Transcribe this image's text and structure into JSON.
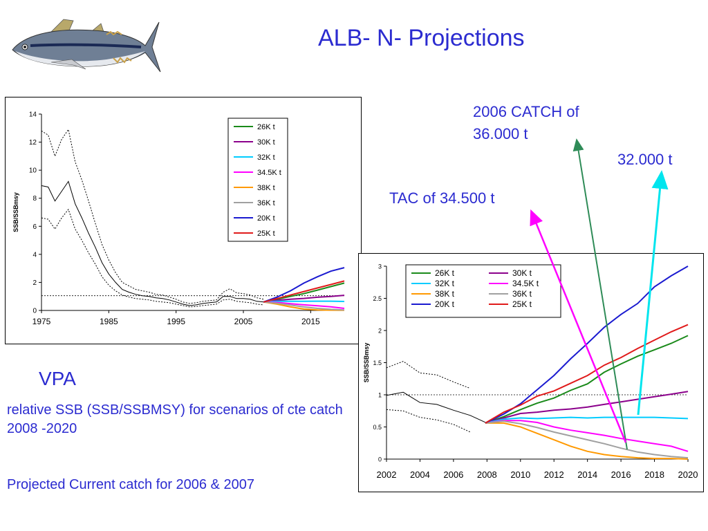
{
  "slide": {
    "title": "ALB- N- Projections",
    "vpa_label": "VPA",
    "description": "relative SSB (SSB/SSBMSY) for scenarios of cte catch 2008 -2020",
    "footnote": "Projected Current catch for 2006 & 2007",
    "annotations": {
      "catch_2006": "2006 CATCH of 36.000 t",
      "catch_32": "32.000 t",
      "tac": "TAC of  34.500 t"
    },
    "colors": {
      "text_blue": "#2b2bd0",
      "arrow_green": "#2e8b57",
      "arrow_magenta": "#ff00ff",
      "arrow_cyan": "#00e5ee"
    },
    "logo_icon": "albacore-tuna-fish-icon"
  },
  "chart_data": [
    {
      "type": "line",
      "title": "",
      "xlabel": "",
      "ylabel": "SSB/SSBmsy",
      "xlim": [
        1975,
        2020
      ],
      "ylim": [
        0,
        14
      ],
      "xticks": [
        1975,
        1985,
        1995,
        2005,
        2015
      ],
      "yticks": [
        0,
        2,
        4,
        6,
        8,
        10,
        12,
        14
      ],
      "reference_line": 1.05,
      "legend": "top-right",
      "historical": {
        "x": [
          1975,
          1976,
          1977,
          1978,
          1979,
          1980,
          1981,
          1982,
          1983,
          1984,
          1985,
          1986,
          1987,
          1988,
          1989,
          1990,
          1991,
          1992,
          1993,
          1994,
          1995,
          1996,
          1997,
          1998,
          1999,
          2000,
          2001,
          2002,
          2003,
          2004,
          2005,
          2006,
          2007,
          2008
        ],
        "mid": [
          8.9,
          8.8,
          7.8,
          8.5,
          9.2,
          7.6,
          6.6,
          5.5,
          4.5,
          3.4,
          2.6,
          2.0,
          1.5,
          1.3,
          1.15,
          1.05,
          1.0,
          0.9,
          0.85,
          0.75,
          0.6,
          0.45,
          0.35,
          0.4,
          0.5,
          0.55,
          0.6,
          1.0,
          1.0,
          0.85,
          0.85,
          0.8,
          0.65,
          0.6
        ],
        "upper": [
          12.8,
          12.5,
          11.0,
          12.2,
          12.9,
          10.6,
          9.3,
          7.8,
          6.2,
          4.7,
          3.6,
          2.7,
          2.0,
          1.75,
          1.5,
          1.4,
          1.3,
          1.15,
          1.1,
          0.95,
          0.8,
          0.6,
          0.5,
          0.55,
          0.65,
          0.7,
          0.75,
          1.3,
          1.55,
          1.25,
          1.2,
          1.1,
          0.9,
          0.8
        ],
        "lower": [
          6.6,
          6.5,
          5.8,
          6.6,
          7.2,
          5.8,
          5.0,
          4.1,
          3.3,
          2.4,
          1.8,
          1.4,
          1.1,
          0.95,
          0.85,
          0.8,
          0.75,
          0.65,
          0.6,
          0.55,
          0.45,
          0.35,
          0.25,
          0.28,
          0.35,
          0.4,
          0.45,
          0.75,
          0.8,
          0.65,
          0.6,
          0.55,
          0.45,
          0.4
        ]
      },
      "projection_x": [
        2008,
        2010,
        2012,
        2014,
        2016,
        2018,
        2020
      ],
      "series": [
        {
          "name": "26K t",
          "color": "#1a8a1a",
          "values": [
            0.6,
            0.8,
            1.0,
            1.2,
            1.45,
            1.7,
            1.95
          ]
        },
        {
          "name": "30K t",
          "color": "#8b008b",
          "values": [
            0.6,
            0.72,
            0.8,
            0.86,
            0.94,
            1.0,
            1.08
          ]
        },
        {
          "name": "32K t",
          "color": "#00ccff",
          "values": [
            0.6,
            0.65,
            0.65,
            0.65,
            0.66,
            0.66,
            0.64
          ]
        },
        {
          "name": "34.5K t",
          "color": "#ff00ff",
          "values": [
            0.6,
            0.57,
            0.48,
            0.4,
            0.33,
            0.26,
            0.15
          ]
        },
        {
          "name": "38K t",
          "color": "#ff9900",
          "values": [
            0.6,
            0.45,
            0.25,
            0.1,
            0.04,
            0.02,
            0.01
          ]
        },
        {
          "name": "36K t",
          "color": "#a0a0a0",
          "values": [
            0.6,
            0.52,
            0.38,
            0.25,
            0.15,
            0.08,
            0.04
          ]
        },
        {
          "name": "20K t",
          "color": "#1a1ad0",
          "values": [
            0.6,
            0.95,
            1.4,
            1.95,
            2.4,
            2.8,
            3.05
          ]
        },
        {
          "name": "25K t",
          "color": "#e01a1a",
          "values": [
            0.6,
            0.85,
            1.1,
            1.35,
            1.6,
            1.85,
            2.1
          ]
        }
      ]
    },
    {
      "type": "line",
      "title": "",
      "xlabel": "",
      "ylabel": "SSB/SSBmsy",
      "xlim": [
        2002,
        2020
      ],
      "ylim": [
        0,
        3
      ],
      "xticks": [
        2002,
        2004,
        2006,
        2008,
        2010,
        2012,
        2014,
        2016,
        2018,
        2020
      ],
      "yticks": [
        0,
        0.5,
        1,
        1.5,
        2,
        2.5,
        3
      ],
      "ytick_labels": [
        "0",
        "0.5",
        "1",
        "1.5",
        "2",
        "2.5",
        "3"
      ],
      "reference_line": 1.0,
      "legend": "top-left",
      "historical": {
        "x": [
          2002,
          2003,
          2004,
          2005,
          2006,
          2007,
          2008
        ],
        "mid": [
          0.99,
          1.04,
          0.88,
          0.85,
          0.76,
          0.68,
          0.56
        ],
        "upper": [
          1.42,
          1.52,
          1.34,
          1.31,
          1.2,
          1.1,
          null
        ],
        "lower": [
          0.77,
          0.75,
          0.65,
          0.61,
          0.54,
          0.42,
          null
        ]
      },
      "projection_x": [
        2007.9,
        2009,
        2010,
        2011,
        2012,
        2013,
        2014,
        2015,
        2016,
        2017,
        2018,
        2019,
        2020
      ],
      "series": [
        {
          "name": "26K t",
          "color": "#1a8a1a",
          "values": [
            0.56,
            0.66,
            0.77,
            0.87,
            0.95,
            1.07,
            1.17,
            1.35,
            1.48,
            1.6,
            1.7,
            1.8,
            1.92
          ]
        },
        {
          "name": "30K t",
          "color": "#8b008b",
          "values": [
            0.56,
            0.64,
            0.71,
            0.73,
            0.76,
            0.78,
            0.81,
            0.85,
            0.89,
            0.93,
            0.97,
            1.01,
            1.05
          ]
        },
        {
          "name": "32K t",
          "color": "#00ccff",
          "values": [
            0.56,
            0.62,
            0.64,
            0.63,
            0.64,
            0.65,
            0.64,
            0.65,
            0.65,
            0.65,
            0.65,
            0.64,
            0.63
          ]
        },
        {
          "name": "34.5K t",
          "color": "#ff00ff",
          "values": [
            0.56,
            0.6,
            0.6,
            0.57,
            0.5,
            0.45,
            0.41,
            0.37,
            0.32,
            0.28,
            0.24,
            0.2,
            0.12
          ]
        },
        {
          "name": "38K t",
          "color": "#ff9900",
          "values": [
            0.56,
            0.56,
            0.5,
            0.4,
            0.3,
            0.2,
            0.12,
            0.07,
            0.04,
            0.02,
            0.01,
            0.01,
            0.0
          ]
        },
        {
          "name": "36K t",
          "color": "#a0a0a0",
          "values": [
            0.56,
            0.59,
            0.55,
            0.49,
            0.42,
            0.36,
            0.3,
            0.24,
            0.17,
            0.11,
            0.07,
            0.04,
            0.02
          ]
        },
        {
          "name": "20K t",
          "color": "#1a1ad0",
          "values": [
            0.56,
            0.7,
            0.86,
            1.08,
            1.3,
            1.56,
            1.8,
            2.05,
            2.25,
            2.42,
            2.68,
            2.85,
            3.0
          ]
        },
        {
          "name": "25K t",
          "color": "#e01a1a",
          "values": [
            0.56,
            0.73,
            0.84,
            0.98,
            1.06,
            1.18,
            1.3,
            1.46,
            1.58,
            1.72,
            1.85,
            1.98,
            2.09
          ]
        }
      ]
    }
  ]
}
